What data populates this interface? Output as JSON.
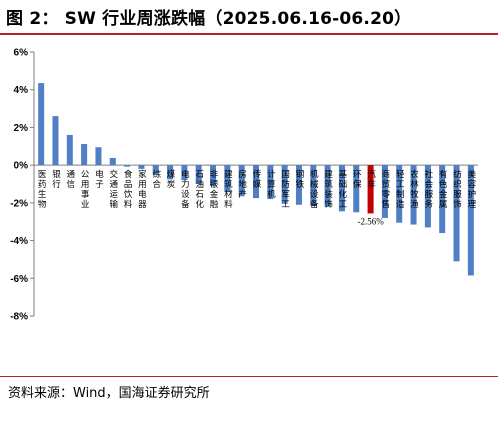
{
  "title": "图 2： SW 行业周涨跌幅（2025.06.16-06.20）",
  "source": "资料来源：Wind，国海证券研究所",
  "colors": {
    "bar": "#4f7fc4",
    "highlight": "#c00000",
    "axis": "#7f7f7f",
    "title_rule": "#b8202a"
  },
  "chart_data": {
    "type": "bar",
    "title": "SW 行业周涨跌幅（2025.06.16-06.20）",
    "xlabel": "",
    "ylabel": "",
    "ylim": [
      -8,
      6
    ],
    "yticks": [
      "-8%",
      "-6%",
      "-4%",
      "-2%",
      "0%",
      "2%",
      "4%",
      "6%"
    ],
    "grid": false,
    "categories": [
      "医药生物",
      "银行",
      "通信",
      "公用事业",
      "电子",
      "交通运输",
      "食品饮料",
      "家用电器",
      "综合",
      "煤炭",
      "电力设备",
      "石油石化",
      "非银金融",
      "建筑材料",
      "房地产",
      "传媒",
      "计算机",
      "国防军工",
      "钢铁",
      "机械设备",
      "建筑装饰",
      "基础化工",
      "环保",
      "汽车",
      "商贸零售",
      "轻工制造",
      "农林牧渔",
      "社会服务",
      "有色金属",
      "纺织服饰",
      "美容护理"
    ],
    "values": [
      4.35,
      2.6,
      1.6,
      1.12,
      0.95,
      0.38,
      -0.08,
      -0.2,
      -0.5,
      -0.75,
      -0.8,
      -1.0,
      -1.1,
      -1.4,
      -1.65,
      -1.75,
      -1.8,
      -2.05,
      -2.1,
      -2.15,
      -2.2,
      -2.45,
      -2.5,
      -2.56,
      -2.8,
      -3.05,
      -3.15,
      -3.3,
      -3.6,
      -5.1,
      -5.85
    ],
    "highlight_index": 23,
    "data_labels": [
      {
        "index": 23,
        "text": "-2.56%"
      }
    ]
  }
}
